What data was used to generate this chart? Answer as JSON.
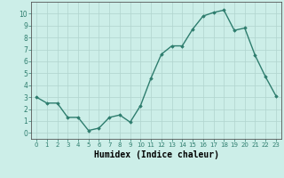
{
  "x": [
    0,
    1,
    2,
    3,
    4,
    5,
    6,
    7,
    8,
    9,
    10,
    11,
    12,
    13,
    14,
    15,
    16,
    17,
    18,
    19,
    20,
    21,
    22,
    23
  ],
  "y": [
    3.0,
    2.5,
    2.5,
    1.3,
    1.3,
    0.2,
    0.4,
    1.3,
    1.5,
    0.9,
    2.3,
    4.6,
    6.6,
    7.3,
    7.3,
    8.7,
    9.8,
    10.1,
    10.3,
    8.6,
    8.8,
    6.5,
    4.7,
    3.1
  ],
  "xlabel": "Humidex (Indice chaleur)",
  "xlim": [
    -0.5,
    23.5
  ],
  "ylim": [
    -0.5,
    11.0
  ],
  "yticks": [
    0,
    1,
    2,
    3,
    4,
    5,
    6,
    7,
    8,
    9,
    10
  ],
  "xticks": [
    0,
    1,
    2,
    3,
    4,
    5,
    6,
    7,
    8,
    9,
    10,
    11,
    12,
    13,
    14,
    15,
    16,
    17,
    18,
    19,
    20,
    21,
    22,
    23
  ],
  "line_color": "#2e7d6e",
  "marker": "D",
  "marker_size": 1.8,
  "bg_color": "#cceee8",
  "grid_color": "#b0d4ce",
  "line_width": 1.0,
  "xlabel_fontsize": 7,
  "tick_fontsize": 5,
  "ytick_fontsize": 5.5
}
